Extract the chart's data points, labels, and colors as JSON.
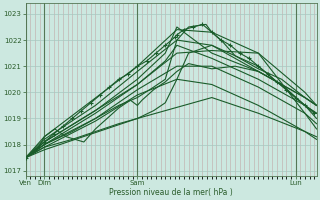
{
  "bg_color": "#cce8e0",
  "grid_color": "#a8c8c0",
  "line_color": "#1a5c2a",
  "xlabel_text": "Pression niveau de la mer( hPa )",
  "xtick_labels": [
    "Ven",
    "Dim",
    "Sam",
    "Lun"
  ],
  "xtick_positions": [
    0,
    16,
    96,
    232
  ],
  "ylim": [
    1016.8,
    1023.4
  ],
  "yticks": [
    1017,
    1018,
    1019,
    1020,
    1021,
    1022,
    1023
  ],
  "xlim": [
    0,
    250
  ],
  "series": [
    {
      "x": [
        0,
        16,
        96,
        130,
        160,
        200,
        240,
        250
      ],
      "y": [
        1017.5,
        1018.3,
        1021.0,
        1022.4,
        1022.3,
        1021.5,
        1019.2,
        1018.6
      ]
    },
    {
      "x": [
        0,
        16,
        60,
        96,
        130,
        160,
        200,
        240,
        250
      ],
      "y": [
        1017.5,
        1018.2,
        1019.5,
        1020.8,
        1022.0,
        1021.8,
        1021.0,
        1019.5,
        1019.0
      ]
    },
    {
      "x": [
        0,
        16,
        60,
        96,
        120,
        130,
        160,
        200,
        240,
        250
      ],
      "y": [
        1017.5,
        1018.1,
        1019.3,
        1020.5,
        1021.5,
        1022.5,
        1021.5,
        1020.8,
        1019.8,
        1019.5
      ]
    },
    {
      "x": [
        0,
        16,
        60,
        96,
        120,
        130,
        160,
        200,
        240,
        250
      ],
      "y": [
        1017.5,
        1018.0,
        1019.2,
        1020.3,
        1021.2,
        1021.8,
        1021.3,
        1020.5,
        1019.5,
        1019.2
      ]
    },
    {
      "x": [
        0,
        16,
        60,
        96,
        130,
        160,
        200,
        240,
        250
      ],
      "y": [
        1017.5,
        1018.0,
        1019.0,
        1020.1,
        1021.0,
        1021.0,
        1020.2,
        1019.2,
        1018.8
      ]
    },
    {
      "x": [
        0,
        16,
        96,
        130,
        160,
        200,
        240,
        250
      ],
      "y": [
        1017.5,
        1018.1,
        1020.3,
        1021.5,
        1021.6,
        1021.5,
        1020.0,
        1019.5
      ]
    },
    {
      "x": [
        0,
        16,
        60,
        96,
        130,
        160,
        200,
        240,
        250
      ],
      "y": [
        1017.5,
        1017.9,
        1018.9,
        1019.9,
        1020.5,
        1020.3,
        1019.5,
        1018.5,
        1018.3
      ]
    },
    {
      "x": [
        0,
        16,
        96,
        160,
        200,
        240,
        250
      ],
      "y": [
        1017.5,
        1017.8,
        1019.0,
        1019.8,
        1019.2,
        1018.5,
        1018.2
      ]
    },
    {
      "x": [
        0,
        16,
        40,
        60,
        80,
        96,
        110,
        120,
        130,
        140,
        155,
        160,
        170,
        180,
        200,
        220,
        240,
        250
      ],
      "y": [
        1017.5,
        1018.0,
        1018.5,
        1019.0,
        1019.5,
        1019.8,
        1020.2,
        1020.5,
        1022.0,
        1022.5,
        1022.6,
        1022.3,
        1021.9,
        1021.4,
        1020.9,
        1020.5,
        1019.8,
        1019.5
      ]
    },
    {
      "x": [
        0,
        16,
        40,
        60,
        80,
        96,
        110,
        120,
        130,
        140,
        160,
        180,
        200,
        220,
        240,
        250
      ],
      "y": [
        1017.5,
        1017.9,
        1018.2,
        1018.5,
        1018.8,
        1019.0,
        1019.3,
        1019.6,
        1020.5,
        1021.5,
        1021.8,
        1021.3,
        1020.8,
        1020.3,
        1019.5,
        1019.2
      ]
    },
    {
      "x": [
        0,
        10,
        16,
        25,
        35,
        50,
        60,
        70,
        80,
        90,
        96,
        100,
        110,
        120,
        130,
        140,
        150,
        160,
        180,
        200,
        220,
        240,
        250
      ],
      "y": [
        1017.5,
        1017.8,
        1018.3,
        1018.6,
        1018.3,
        1018.1,
        1018.6,
        1019.0,
        1019.4,
        1019.7,
        1019.5,
        1019.7,
        1020.1,
        1020.4,
        1020.8,
        1021.1,
        1021.0,
        1020.9,
        1021.0,
        1020.8,
        1020.3,
        1019.8,
        1019.5
      ]
    }
  ],
  "marker_series": [
    {
      "x": [
        0,
        8,
        16,
        24,
        32,
        40,
        48,
        56,
        64,
        72,
        80,
        88,
        96,
        104,
        112,
        120,
        128,
        130,
        136,
        144,
        152,
        160,
        168,
        176,
        184,
        192,
        200,
        208,
        216,
        224,
        232,
        240,
        248
      ],
      "y": [
        1017.5,
        1017.8,
        1018.1,
        1018.4,
        1018.7,
        1019.0,
        1019.3,
        1019.6,
        1019.9,
        1020.2,
        1020.5,
        1020.7,
        1021.0,
        1021.2,
        1021.5,
        1021.8,
        1022.1,
        1022.2,
        1022.4,
        1022.5,
        1022.6,
        1022.3,
        1022.0,
        1021.8,
        1021.5,
        1021.3,
        1021.0,
        1020.7,
        1020.4,
        1020.1,
        1019.8,
        1019.5,
        1019.2
      ]
    }
  ]
}
